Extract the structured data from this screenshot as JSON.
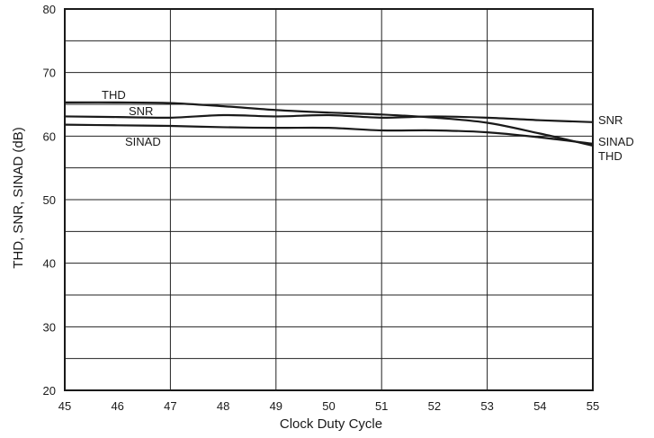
{
  "chart_data": {
    "type": "line",
    "title": "",
    "xlabel": "Clock Duty Cycle",
    "ylabel": "THD, SNR, SINAD (dB)",
    "xlim": [
      45,
      55
    ],
    "ylim": [
      20,
      80
    ],
    "xticks": [
      45,
      46,
      47,
      48,
      49,
      50,
      51,
      52,
      53,
      54,
      55
    ],
    "yticks": [
      20,
      30,
      40,
      50,
      60,
      70,
      80
    ],
    "grid": "on",
    "legend": "none",
    "series": [
      {
        "name": "THD",
        "x": [
          45,
          46,
          47,
          48,
          49,
          50,
          51,
          52,
          53,
          54,
          55
        ],
        "y": [
          65.3,
          65.3,
          65.2,
          64.7,
          64.1,
          63.7,
          63.4,
          62.9,
          62.1,
          60.4,
          58.5
        ]
      },
      {
        "name": "SNR",
        "x": [
          45,
          46,
          47,
          48,
          49,
          50,
          51,
          52,
          53,
          54,
          55
        ],
        "y": [
          63.1,
          63.0,
          62.9,
          63.3,
          63.1,
          63.3,
          62.9,
          63.1,
          62.9,
          62.5,
          62.2
        ]
      },
      {
        "name": "SINAD",
        "x": [
          45,
          46,
          47,
          48,
          49,
          50,
          51,
          52,
          53,
          54,
          55
        ],
        "y": [
          61.8,
          61.7,
          61.6,
          61.4,
          61.3,
          61.3,
          60.9,
          60.9,
          60.6,
          59.8,
          58.8
        ]
      }
    ],
    "annotations": [
      {
        "series": "THD",
        "text": "THD"
      },
      {
        "series": "SNR",
        "text": "SNR"
      },
      {
        "series": "SINAD",
        "text": "SINAD"
      },
      {
        "series": "SNR",
        "text": "SNR"
      },
      {
        "series": "SINAD",
        "text": "SINAD"
      },
      {
        "series": "THD",
        "text": "THD"
      }
    ]
  }
}
